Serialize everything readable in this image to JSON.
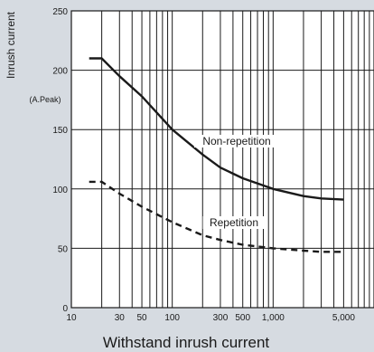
{
  "chart_data": {
    "type": "line",
    "xlabel": "Withstand inrush current",
    "ylabel": "Inrush current",
    "yunit": "(A.Peak)",
    "xscale": "log",
    "xlim": [
      10,
      10000
    ],
    "ylim": [
      0,
      250
    ],
    "xticks": [
      10,
      30,
      50,
      100,
      300,
      500,
      1000,
      5000
    ],
    "xtick_labels": [
      "10",
      "30",
      "50",
      "100",
      "300",
      "500",
      "1,000",
      "5,000"
    ],
    "yticks": [
      0,
      50,
      100,
      150,
      200,
      250
    ],
    "ytick_labels": [
      "0",
      "50",
      "100",
      "150",
      "200",
      "250"
    ],
    "grid": true,
    "series": [
      {
        "name": "Non-repetition",
        "style": "solid",
        "x": [
          15,
          20,
          30,
          50,
          100,
          200,
          300,
          500,
          1000,
          2000,
          3000,
          5000
        ],
        "y": [
          210,
          210,
          195,
          178,
          150,
          129,
          118,
          109,
          100,
          94,
          92,
          91
        ]
      },
      {
        "name": "Repetition",
        "style": "dashed",
        "x": [
          15,
          20,
          30,
          50,
          100,
          200,
          300,
          500,
          1000,
          2000,
          3000,
          5000
        ],
        "y": [
          106,
          106,
          96,
          85,
          72,
          61,
          57,
          53,
          50,
          48,
          47,
          47
        ]
      }
    ],
    "colors": {
      "background": "#d6dbe1",
      "plot": "#ffffff",
      "line": "#1a1a1a"
    }
  }
}
